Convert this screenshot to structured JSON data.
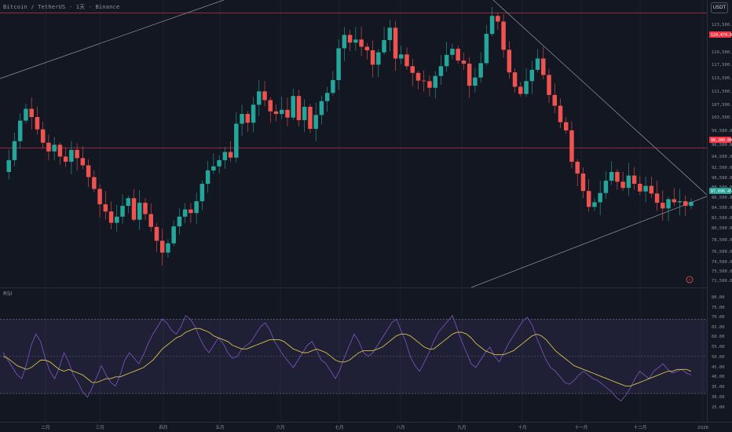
{
  "header": {
    "title": "Bitcoin / TetherUS · 1天 · Binance",
    "currency": "USDT"
  },
  "indicator": {
    "label": "RSI"
  },
  "colors": {
    "up": "#26a69a",
    "down": "#ef5350",
    "background": "#131722",
    "rsi_line": "#7e57c2",
    "rsi_ma": "#d6c14a",
    "hline": "#c2334a"
  },
  "price_axis": {
    "ticks": [
      "123,500.00",
      "119,500.00",
      "117,500.00",
      "113,500.00",
      "111,500.00",
      "107,500.00",
      "103,500.00",
      "99,500.00",
      "96,500.00",
      "94,500.00",
      "92,500.00",
      "90,500.00",
      "88,500.00",
      "86,500.00",
      "84,500.00",
      "82,500.00",
      "80,500.00",
      "78,500.00",
      "76,500.00",
      "74,500.00",
      "73,500.00",
      "71,500.00"
    ],
    "tags": {
      "resistance": "124,474.00",
      "support": "98,200.00",
      "last": "87,696.45"
    }
  },
  "rsi_axis": {
    "ticks": [
      "80.00",
      "75.00",
      "70.00",
      "65.00",
      "60.00",
      "55.00",
      "50.00",
      "45.00",
      "40.00",
      "35.00",
      "30.00",
      "25.00"
    ]
  },
  "time_axis": {
    "months": [
      "二月",
      "三月",
      "四月",
      "五月",
      "六月",
      "七月",
      "八月",
      "九月",
      "十月",
      "十一月",
      "十二月",
      "2026"
    ]
  },
  "chart_data": {
    "type": "candlestick",
    "title": "Bitcoin / TetherUS · 1天 · Binance",
    "y_axis": "USDT",
    "ylim": [
      71000,
      127000
    ],
    "horizontal_lines": [
      124474,
      98200
    ],
    "last_price": 87696.45,
    "rsi": {
      "ylim": [
        22,
        82
      ],
      "band": [
        30,
        70
      ],
      "midline": 50,
      "values": [
        52,
        48,
        44,
        40,
        38,
        46,
        56,
        62,
        58,
        49,
        42,
        38,
        44,
        52,
        47,
        40,
        36,
        31,
        28,
        33,
        39,
        45,
        40,
        36,
        34,
        40,
        48,
        52,
        49,
        46,
        51,
        57,
        62,
        66,
        70,
        68,
        64,
        62,
        66,
        72,
        70,
        66,
        60,
        55,
        52,
        56,
        60,
        57,
        52,
        49,
        50,
        54,
        56,
        58,
        62,
        66,
        68,
        64,
        58,
        54,
        50,
        47,
        44,
        48,
        52,
        56,
        58,
        53,
        48,
        46,
        42,
        38,
        43,
        50,
        56,
        62,
        58,
        52,
        50,
        52,
        56,
        60,
        64,
        68,
        70,
        64,
        58,
        50,
        45,
        42,
        47,
        52,
        58,
        63,
        66,
        69,
        72,
        65,
        58,
        52,
        46,
        44,
        48,
        52,
        55,
        50,
        47,
        52,
        57,
        61,
        65,
        69,
        71,
        67,
        60,
        54,
        48,
        44,
        42,
        39,
        36,
        35,
        37,
        40,
        42,
        40,
        38,
        37,
        35,
        33,
        31,
        28,
        26,
        29,
        33,
        38,
        42,
        40,
        38,
        42,
        44,
        46,
        43,
        41,
        42,
        43,
        41,
        40
      ],
      "ma_values": [
        50,
        49,
        47,
        45,
        44,
        43,
        44,
        46,
        48,
        48,
        47,
        45,
        43,
        42,
        43,
        42,
        41,
        40,
        38,
        36,
        36,
        37,
        38,
        38,
        39,
        39,
        40,
        41,
        42,
        43,
        44,
        46,
        48,
        51,
        54,
        56,
        58,
        60,
        61,
        63,
        64,
        65,
        65,
        64,
        63,
        61,
        60,
        59,
        58,
        56,
        55,
        54,
        54,
        55,
        56,
        57,
        58,
        59,
        59,
        59,
        58,
        56,
        54,
        53,
        52,
        52,
        53,
        54,
        53,
        52,
        50,
        48,
        47,
        47,
        48,
        50,
        52,
        53,
        53,
        53,
        54,
        55,
        57,
        59,
        61,
        62,
        62,
        61,
        59,
        57,
        55,
        54,
        54,
        56,
        58,
        60,
        62,
        63,
        63,
        62,
        60,
        57,
        55,
        53,
        52,
        51,
        51,
        51,
        52,
        53,
        55,
        57,
        59,
        61,
        62,
        61,
        59,
        56,
        53,
        51,
        49,
        47,
        45,
        44,
        43,
        42,
        41,
        40,
        39,
        38,
        37,
        36,
        35,
        34,
        34,
        35,
        36,
        37,
        38,
        39,
        40,
        41,
        42,
        42,
        43,
        43,
        43,
        42
      ]
    },
    "price_path": [
      93500,
      95800,
      99500,
      103500,
      105800,
      104200,
      101800,
      99200,
      97500,
      98800,
      96500,
      95500,
      97800,
      96200,
      94800,
      92500,
      90200,
      87200,
      85800,
      83600,
      84800,
      86900,
      88400,
      84200,
      87500,
      85300,
      82800,
      80100,
      77800,
      79600,
      82900,
      84800,
      86200,
      85500,
      87800,
      91200,
      93800,
      94600,
      95800,
      97400,
      96300,
      102900,
      104800,
      103100,
      106600,
      109200,
      107500,
      105300,
      104800,
      105600,
      104100,
      108300,
      103600,
      106200,
      101900,
      104600,
      107300,
      108900,
      111400,
      117600,
      120200,
      118700,
      119300,
      117900,
      117200,
      114400,
      116800,
      119200,
      121600,
      115600,
      116400,
      114100,
      112800,
      111300,
      111200,
      109900,
      112200,
      114100,
      116300,
      117500,
      115200,
      114600,
      110300,
      111900,
      114700,
      120400,
      123900,
      122800,
      117300,
      112900,
      110100,
      108700,
      111200,
      113400,
      115600,
      112400,
      108500,
      106400,
      103200,
      101600,
      95500,
      93200,
      89800,
      86700,
      87600,
      89400,
      91800,
      93500,
      91600,
      90400,
      92800,
      91200,
      89700,
      90800,
      89300,
      87500,
      86400,
      88200,
      87600,
      87800,
      86900,
      87700
    ]
  }
}
